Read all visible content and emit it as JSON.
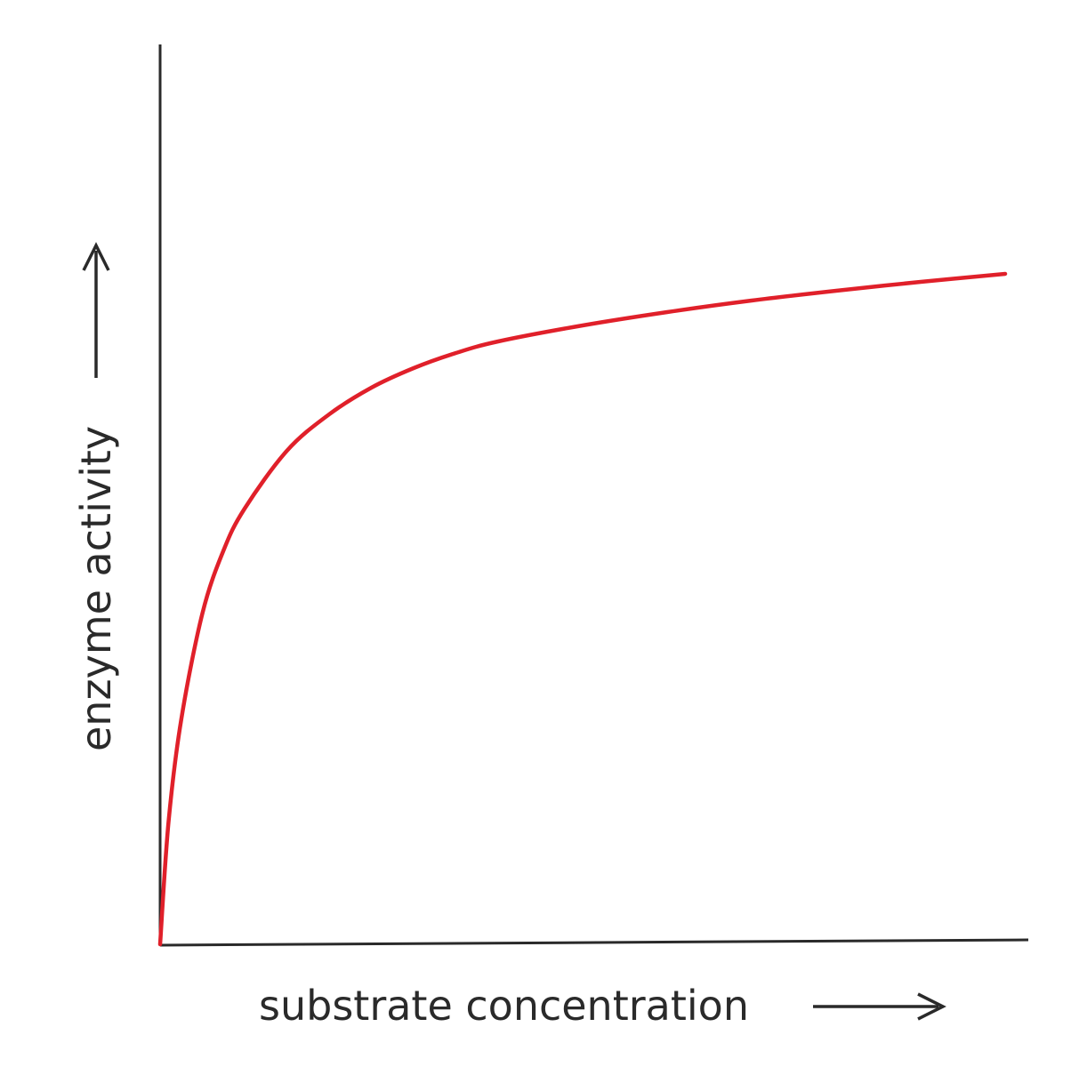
{
  "chart_data": {
    "type": "line",
    "title": "",
    "xlabel": "substrate concentration",
    "ylabel": "enzyme activity",
    "grid": false,
    "legend": "none",
    "xlim": [
      0,
      10
    ],
    "ylim": [
      0,
      1
    ],
    "series": [
      {
        "color": "#e0202a",
        "x": [
          0,
          0.1,
          0.25,
          0.5,
          0.75,
          1,
          1.5,
          2,
          2.5,
          3,
          3.5,
          4,
          5,
          6,
          7,
          8,
          9,
          10
        ],
        "y": [
          0,
          0.138,
          0.253,
          0.372,
          0.443,
          0.49,
          0.555,
          0.596,
          0.626,
          0.648,
          0.665,
          0.678,
          0.696,
          0.711,
          0.724,
          0.735,
          0.745,
          0.754
        ]
      }
    ]
  },
  "colors": {
    "axis": "#2a2a2a",
    "curve": "#e0202a",
    "background": "#ffffff"
  }
}
